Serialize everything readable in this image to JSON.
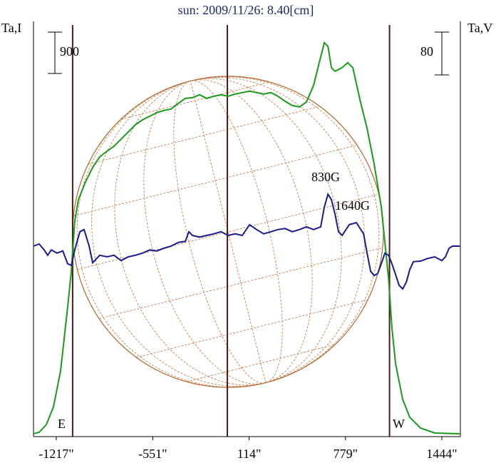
{
  "chart_data": {
    "type": "line",
    "title": "sun: 2009/11/26: 8.40[cm]",
    "y_label": "Ta,I",
    "y2_label": "Ta,V",
    "annotations": [
      "830G",
      "1640G",
      "E",
      "W"
    ],
    "xlim": [
      -1374,
      1572
    ],
    "ylim": [
      -60,
      8970
    ],
    "y2lim": [
      -356,
      420
    ],
    "xticks": [
      {
        "value": -1217,
        "label": "-1217\""
      },
      {
        "value": -551,
        "label": "-551\""
      },
      {
        "value": 114,
        "label": "114\""
      },
      {
        "value": 779,
        "label": "779\""
      },
      {
        "value": 1444,
        "label": "1444\""
      }
    ],
    "scalebars": [
      900,
      80
    ],
    "vlines": [
      -1104,
      -36,
      1083
    ],
    "series": [
      {
        "color": "#1a9a1a",
        "axis": "y",
        "x": [
          -1374,
          -1335,
          -1285,
          -1236,
          -1187,
          -1138,
          -1113,
          -1089,
          -1064,
          -1015,
          -966,
          -917,
          -867,
          -818,
          -769,
          -720,
          -671,
          -621,
          -572,
          -523,
          -474,
          -425,
          -375,
          -326,
          -277,
          -228,
          -179,
          -129,
          -80,
          -31,
          18,
          67,
          117,
          166,
          215,
          264,
          313,
          362,
          412,
          461,
          510,
          559,
          608,
          633,
          658,
          682,
          707,
          756,
          795,
          830,
          879,
          928,
          977,
          1026,
          1051,
          1076,
          1100,
          1125,
          1174,
          1223,
          1297,
          1395,
          1568
        ],
        "values": [
          2,
          33,
          204,
          592,
          1368,
          2765,
          3541,
          4627,
          5093,
          5481,
          5792,
          6024,
          6148,
          6257,
          6412,
          6567,
          6722,
          6831,
          6908,
          6986,
          7033,
          7064,
          7188,
          7296,
          7312,
          7374,
          7296,
          7343,
          7374,
          7343,
          7390,
          7421,
          7452,
          7421,
          7390,
          7421,
          7343,
          7234,
          7141,
          7110,
          7219,
          7576,
          8197,
          8507,
          8429,
          7964,
          7886,
          7964,
          8072,
          7964,
          7265,
          6644,
          5868,
          4937,
          4161,
          3386,
          2299,
          1523,
          747,
          359,
          126,
          18,
          2
        ]
      },
      {
        "color": "#1a1a8c",
        "axis": "y2",
        "x": [
          -1374,
          -1335,
          -1300,
          -1276,
          -1251,
          -1212,
          -1172,
          -1138,
          -1113,
          -1089,
          -1054,
          -1025,
          -990,
          -966,
          -917,
          -867,
          -818,
          -769,
          -720,
          -671,
          -621,
          -572,
          -523,
          -474,
          -425,
          -375,
          -326,
          -302,
          -277,
          -228,
          -179,
          -129,
          -80,
          -31,
          18,
          67,
          117,
          166,
          215,
          264,
          313,
          362,
          412,
          461,
          510,
          559,
          608,
          633,
          658,
          682,
          707,
          731,
          756,
          805,
          854,
          904,
          928,
          953,
          977,
          1002,
          1026,
          1051,
          1076,
          1100,
          1125,
          1149,
          1174,
          1199,
          1223,
          1248,
          1297,
          1346,
          1395,
          1444,
          1469,
          1494,
          1518,
          1568
        ],
        "values": [
          0,
          4,
          -7,
          -17,
          -7,
          -13,
          -9,
          -33,
          -36,
          -7,
          27,
          31,
          0,
          -31,
          -17,
          -20,
          -17,
          -27,
          -20,
          -17,
          -13,
          -7,
          -9,
          -4,
          0,
          7,
          9,
          27,
          20,
          17,
          20,
          23,
          27,
          20,
          23,
          20,
          40,
          31,
          23,
          27,
          31,
          33,
          27,
          31,
          36,
          31,
          36,
          73,
          97,
          87,
          60,
          27,
          20,
          40,
          44,
          23,
          -13,
          -47,
          -55,
          -51,
          -33,
          -13,
          -17,
          -33,
          -53,
          -73,
          -80,
          -67,
          -44,
          -29,
          -28,
          -23,
          -20,
          -27,
          -20,
          -4,
          0,
          0
        ]
      }
    ]
  }
}
